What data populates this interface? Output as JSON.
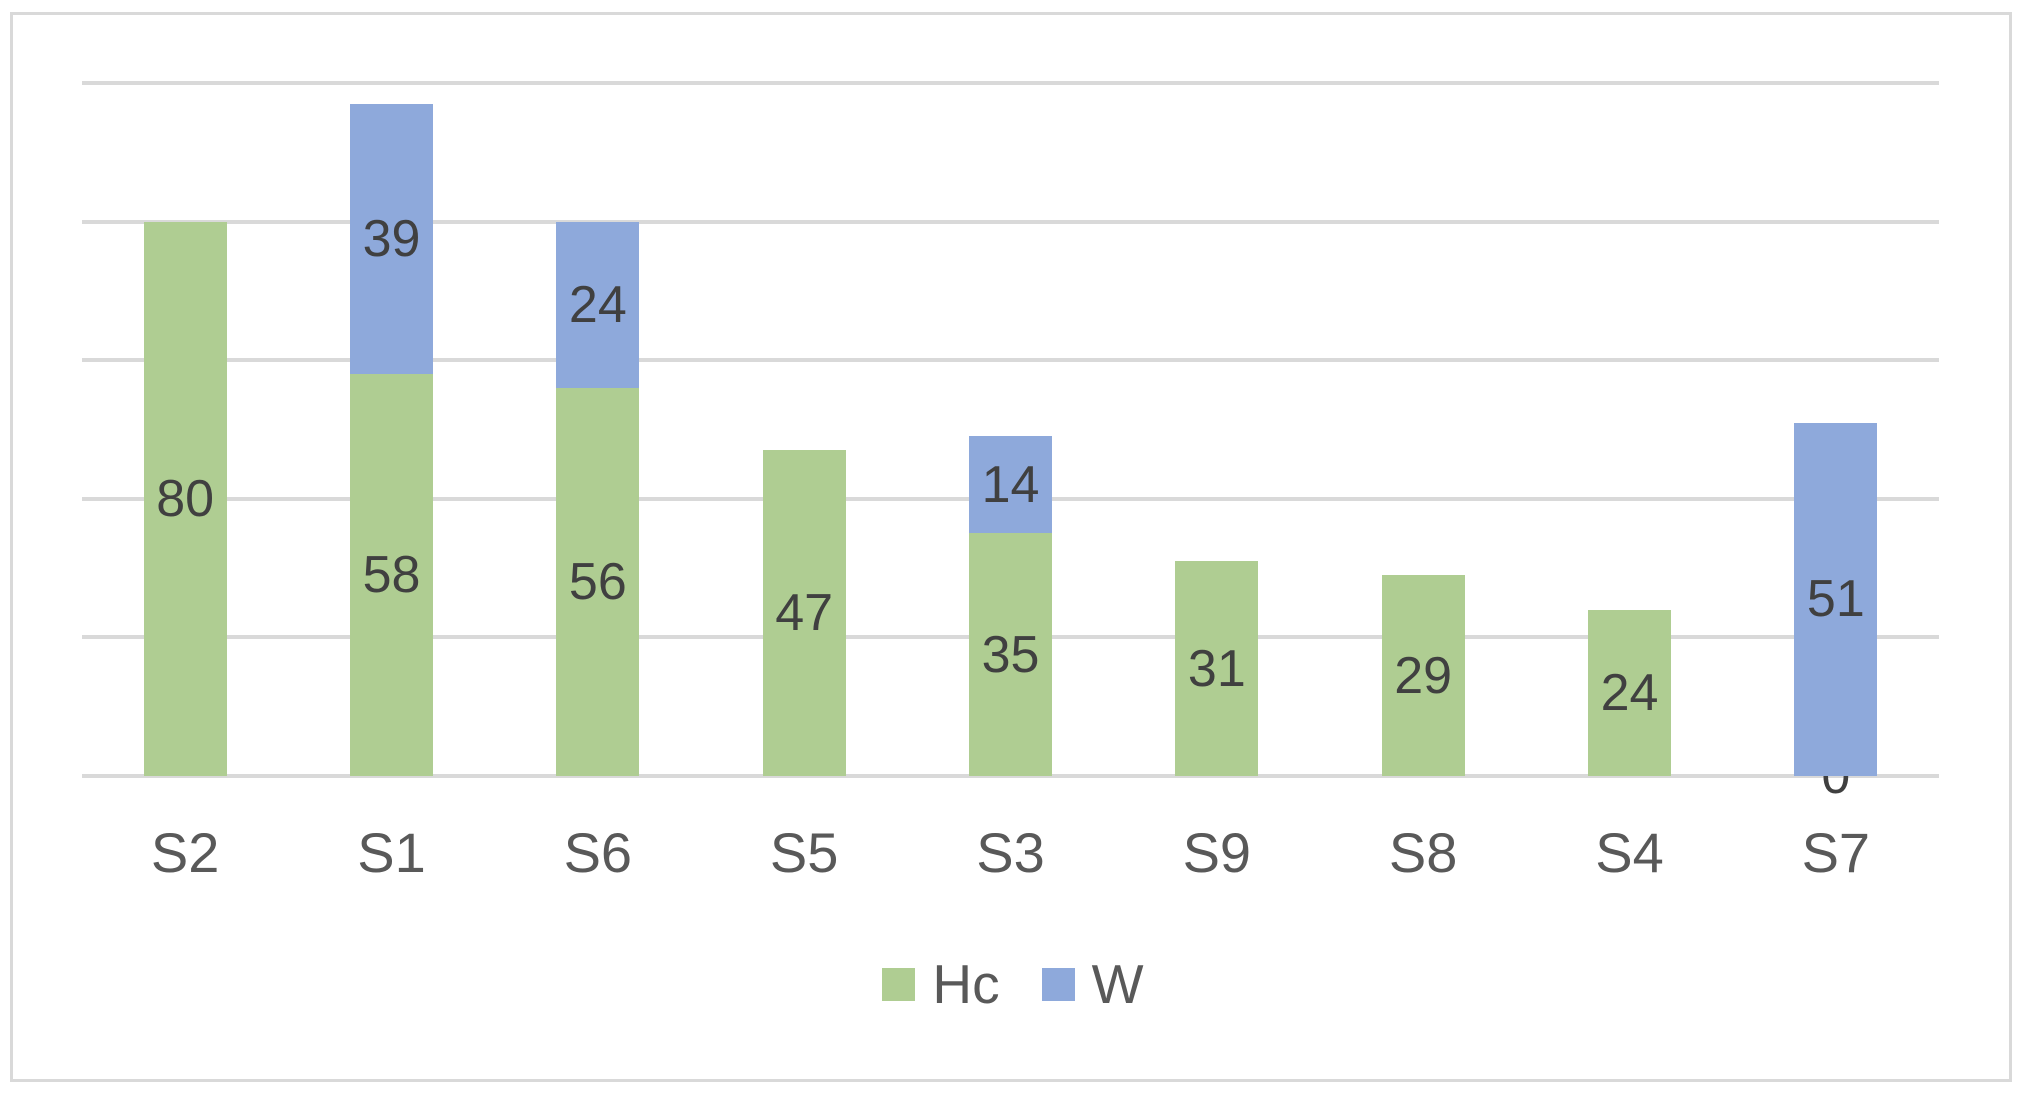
{
  "chart_data": {
    "type": "bar",
    "stacked": true,
    "title": "",
    "xlabel": "",
    "ylabel": "",
    "categories": [
      "S2",
      "S1",
      "S6",
      "S5",
      "S3",
      "S9",
      "S8",
      "S4",
      "S7"
    ],
    "series": [
      {
        "name": "Hc",
        "color": "#AFCD92",
        "values": [
          80,
          58,
          56,
          47,
          35,
          31,
          29,
          24,
          0
        ],
        "labels": [
          "80",
          "58",
          "56",
          "47",
          "35",
          "31",
          "29",
          "24",
          "0"
        ]
      },
      {
        "name": "W",
        "color": "#8EA9DB",
        "values": [
          0,
          39,
          24,
          0,
          14,
          0,
          0,
          0,
          51
        ],
        "labels": [
          "",
          "39",
          "24",
          "",
          "14",
          "",
          "",
          "",
          "51"
        ]
      }
    ],
    "ylim": [
      0,
      100
    ],
    "gridline_step": 20,
    "grid": "horizontal-only",
    "y_tick_labels_shown": false,
    "legend_position": "bottom"
  },
  "style": {
    "grid_color": "#D9D9D9",
    "frame_border_color": "#D9D9D9",
    "data_label_color": "#404040",
    "axis_label_color": "#595959",
    "background_color": "#FFFFFF"
  }
}
